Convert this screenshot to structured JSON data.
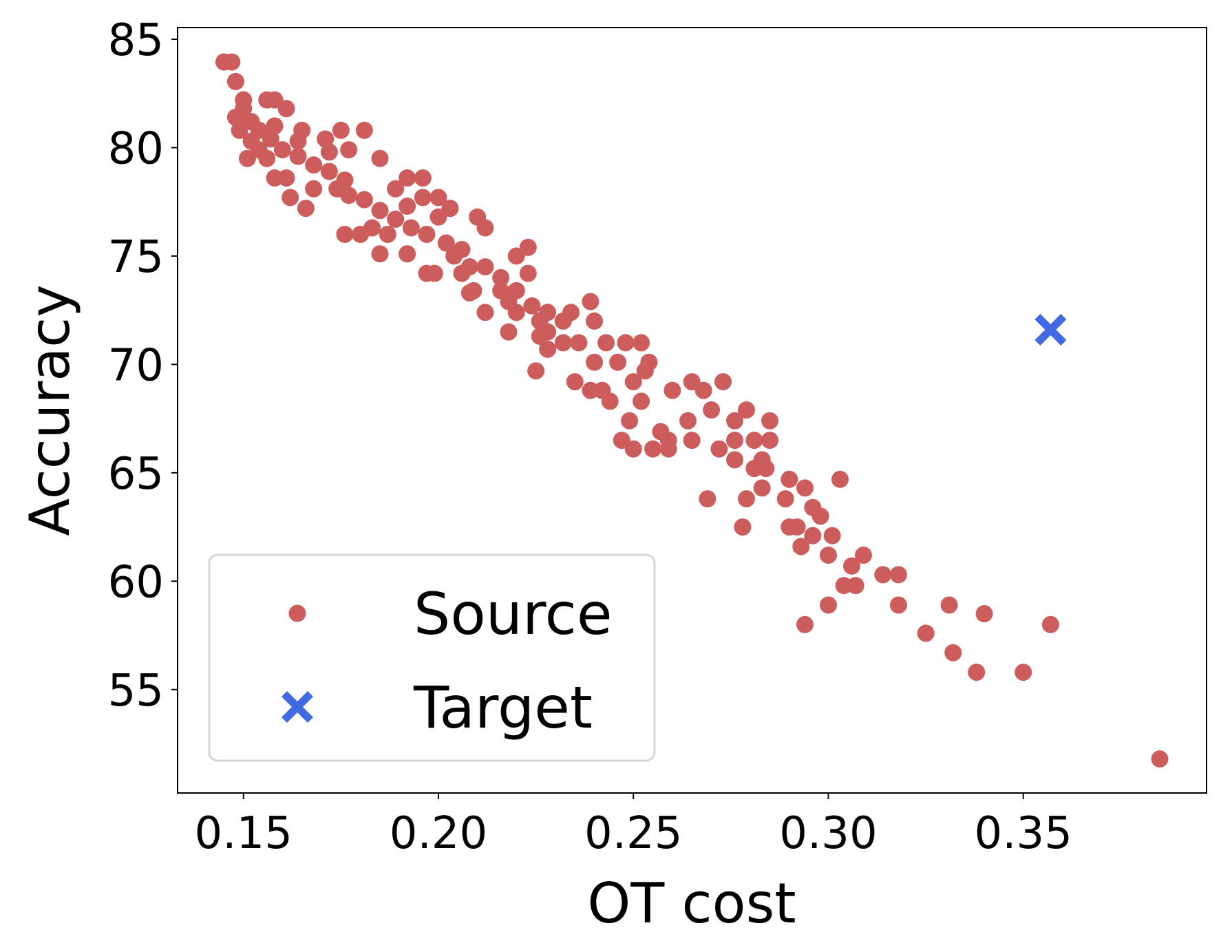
{
  "chart_data": {
    "type": "scatter",
    "xlabel": "OT cost",
    "ylabel": "Accuracy",
    "xlim": [
      0.1331,
      0.397
    ],
    "ylim": [
      50.23,
      85.54
    ],
    "xticks": [
      {
        "value": 0.15,
        "label": "0.15"
      },
      {
        "value": 0.2,
        "label": "0.20"
      },
      {
        "value": 0.25,
        "label": "0.25"
      },
      {
        "value": 0.3,
        "label": "0.30"
      },
      {
        "value": 0.35,
        "label": "0.35"
      }
    ],
    "yticks": [
      55,
      60,
      65,
      70,
      75,
      80,
      85
    ],
    "grid": false,
    "legend": "lower left",
    "series": [
      {
        "name": "Source",
        "color": "#cd5c5c",
        "marker": "o",
        "x": [
          0.145,
          0.147,
          0.148,
          0.385,
          0.35,
          0.338,
          0.332,
          0.325,
          0.357,
          0.34,
          0.331,
          0.318,
          0.294,
          0.3,
          0.304,
          0.307,
          0.314,
          0.318,
          0.309,
          0.306,
          0.3,
          0.301,
          0.293,
          0.296,
          0.29,
          0.292,
          0.298,
          0.296,
          0.289,
          0.294,
          0.303,
          0.29,
          0.283,
          0.284,
          0.281,
          0.283,
          0.276,
          0.272,
          0.278,
          0.269,
          0.279,
          0.285,
          0.281,
          0.276,
          0.285,
          0.276,
          0.279,
          0.265,
          0.273,
          0.265,
          0.268,
          0.27,
          0.264,
          0.26,
          0.255,
          0.25,
          0.259,
          0.247,
          0.259,
          0.257,
          0.249,
          0.252,
          0.244,
          0.253,
          0.25,
          0.254,
          0.252,
          0.248,
          0.243,
          0.246,
          0.242,
          0.239,
          0.235,
          0.24,
          0.236,
          0.239,
          0.234,
          0.24,
          0.225,
          0.228,
          0.232,
          0.226,
          0.223,
          0.223,
          0.22,
          0.218,
          0.212,
          0.216,
          0.208,
          0.206,
          0.212,
          0.21,
          0.203,
          0.2,
          0.196,
          0.197,
          0.199,
          0.192,
          0.185,
          0.176,
          0.18,
          0.196,
          0.192,
          0.185,
          0.181,
          0.175,
          0.177,
          0.171,
          0.166,
          0.162,
          0.165,
          0.156,
          0.151,
          0.158,
          0.161,
          0.15,
          0.156,
          0.158,
          0.161,
          0.15,
          0.152,
          0.154,
          0.157,
          0.16,
          0.164,
          0.168,
          0.172,
          0.174,
          0.168,
          0.177,
          0.181,
          0.185,
          0.189,
          0.193,
          0.187,
          0.197,
          0.202,
          0.206,
          0.208,
          0.212,
          0.216,
          0.22,
          0.224,
          0.228,
          0.232,
          0.22,
          0.228,
          0.2,
          0.204,
          0.183,
          0.172,
          0.164,
          0.158,
          0.154,
          0.176,
          0.192,
          0.189,
          0.209,
          0.218,
          0.226,
          0.148,
          0.149,
          0.152
        ],
        "values": [
          83.95,
          83.95,
          83.05,
          51.8,
          55.8,
          55.8,
          56.7,
          57.6,
          58.0,
          58.5,
          58.9,
          58.9,
          58.0,
          58.9,
          59.8,
          59.8,
          60.3,
          60.3,
          61.2,
          60.7,
          61.2,
          62.1,
          61.6,
          62.1,
          62.5,
          62.5,
          63.0,
          63.4,
          63.8,
          64.3,
          64.7,
          64.7,
          64.3,
          65.2,
          65.2,
          65.6,
          65.6,
          66.1,
          62.5,
          63.8,
          63.8,
          66.5,
          66.5,
          66.5,
          67.4,
          67.4,
          67.9,
          66.5,
          69.2,
          69.2,
          68.8,
          67.9,
          67.4,
          68.8,
          66.1,
          66.1,
          66.1,
          66.5,
          66.5,
          66.9,
          67.4,
          68.3,
          68.3,
          69.7,
          69.2,
          70.1,
          71.0,
          71.0,
          71.0,
          70.1,
          68.8,
          68.8,
          69.2,
          70.1,
          71.0,
          72.9,
          72.4,
          72.0,
          69.7,
          71.5,
          71.0,
          72.0,
          74.2,
          75.4,
          75.0,
          71.5,
          72.4,
          73.4,
          73.3,
          74.2,
          76.3,
          76.8,
          77.2,
          77.7,
          77.7,
          74.2,
          74.2,
          75.1,
          75.1,
          76.0,
          76.0,
          78.6,
          78.6,
          79.5,
          80.8,
          80.8,
          79.9,
          80.4,
          77.2,
          77.7,
          80.8,
          79.5,
          79.5,
          78.6,
          78.6,
          82.2,
          82.2,
          82.2,
          81.8,
          81.8,
          81.2,
          80.8,
          80.4,
          79.9,
          79.6,
          79.2,
          78.9,
          78.1,
          78.1,
          77.8,
          77.6,
          77.1,
          76.7,
          76.3,
          76.0,
          76.0,
          75.6,
          75.3,
          74.5,
          74.5,
          74.0,
          73.4,
          72.7,
          72.4,
          72.0,
          72.4,
          70.7,
          76.8,
          75.0,
          76.3,
          79.8,
          80.3,
          81.0,
          79.9,
          78.5,
          77.3,
          78.1,
          73.4,
          72.9,
          71.3,
          81.4,
          80.8,
          80.3
        ]
      },
      {
        "name": "Target",
        "color": "#4169e1",
        "marker": "X",
        "x": [
          0.357
        ],
        "values": [
          71.6
        ]
      }
    ]
  }
}
